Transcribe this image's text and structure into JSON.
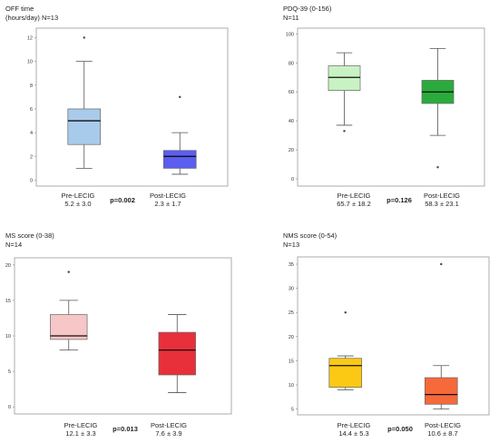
{
  "chart_data": [
    {
      "type": "box",
      "title": "OFF time",
      "subtitle": "(hours/day) N=13",
      "ylim": [
        -0.5,
        12.8
      ],
      "yticks": [
        0,
        2,
        4,
        6,
        8,
        10,
        12
      ],
      "grid": false,
      "pvalue": "p=0.002",
      "groups": [
        {
          "label": "Pre-LECIG",
          "stat": "5.2 ± 3.0",
          "color": "#a9cbeb",
          "min": 1,
          "q1": 3,
          "median": 5,
          "q3": 6,
          "max": 10,
          "outliers": [
            12
          ]
        },
        {
          "label": "Post-LECIG",
          "stat": "2.3 ± 1.7",
          "color": "#5b5ef0",
          "min": 0.5,
          "q1": 1,
          "median": 2,
          "q3": 2.5,
          "max": 4,
          "outliers": [
            7
          ]
        }
      ]
    },
    {
      "type": "box",
      "title": "PDQ-39 (0-156)",
      "subtitle": "N=11",
      "ylim": [
        -5,
        104
      ],
      "yticks": [
        0,
        20,
        40,
        60,
        80,
        100
      ],
      "grid": false,
      "pvalue": "p=0.126",
      "groups": [
        {
          "label": "Pre-LECIG",
          "stat": "65.7 ± 18.2",
          "color": "#c9f2c4",
          "min": 37,
          "q1": 61,
          "median": 70,
          "q3": 78,
          "max": 87,
          "outliers": [
            33
          ]
        },
        {
          "label": "Post-LECIG",
          "stat": "58.3 ± 23.1",
          "color": "#2bab3c",
          "min": 30,
          "q1": 52,
          "median": 60,
          "q3": 68,
          "max": 90,
          "outliers": [
            8
          ]
        }
      ]
    },
    {
      "type": "box",
      "title": "MS score (0-38)",
      "subtitle": "N=14",
      "ylim": [
        -1,
        21
      ],
      "yticks": [
        0,
        5,
        10,
        15,
        20
      ],
      "grid": false,
      "pvalue": "p=0.013",
      "groups": [
        {
          "label": "Pre-LECIG",
          "stat": "12.1 ± 3.3",
          "color": "#f7c6c6",
          "min": 8,
          "q1": 9.5,
          "median": 10,
          "q3": 13,
          "max": 15,
          "outliers": [
            19
          ]
        },
        {
          "label": "Post-LECIG",
          "stat": "7.6 ± 3.9",
          "color": "#e8303a",
          "min": 2,
          "q1": 4.5,
          "median": 8,
          "q3": 10.5,
          "max": 13,
          "outliers": []
        }
      ]
    },
    {
      "type": "box",
      "title": "NMS score (0-54)",
      "subtitle": "N=13",
      "ylim": [
        3.8,
        36.5
      ],
      "yticks": [
        5,
        10,
        15,
        20,
        25,
        30,
        35
      ],
      "grid": false,
      "pvalue": "p=0.050",
      "groups": [
        {
          "label": "Pre-LECIG",
          "stat": "14.4 ± 5.3",
          "color": "#fbc913",
          "min": 9,
          "q1": 9.5,
          "median": 14,
          "q3": 15.5,
          "max": 16,
          "outliers": [
            25
          ]
        },
        {
          "label": "Post-LECIG",
          "stat": "10.6 ± 8.7",
          "color": "#f5693a",
          "min": 5,
          "q1": 6,
          "median": 8,
          "q3": 11.5,
          "max": 14,
          "outliers": [
            35
          ]
        }
      ]
    }
  ]
}
